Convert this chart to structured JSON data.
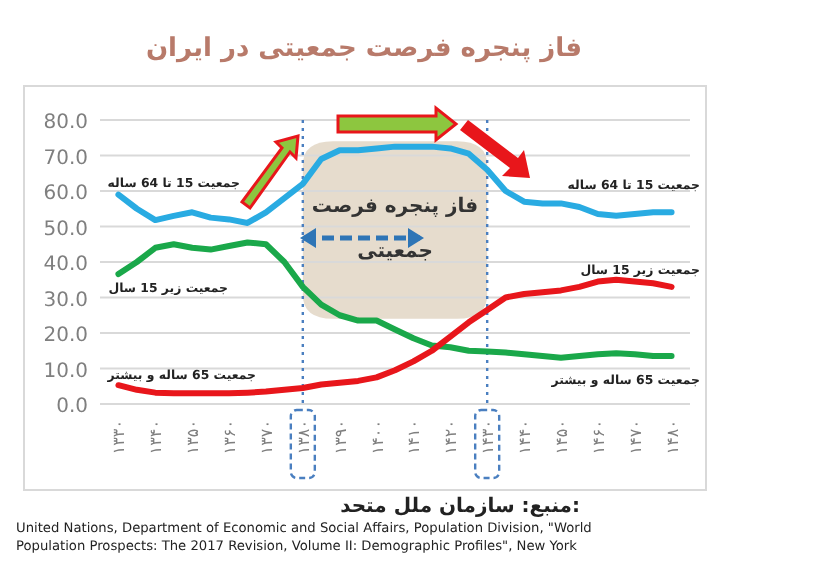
{
  "chart_data": {
    "type": "line",
    "title": "فاز پنجره فرصت جمعیتی در ایران",
    "x": [
      1330,
      1335,
      1340,
      1345,
      1350,
      1355,
      1360,
      1365,
      1370,
      1375,
      1380,
      1385,
      1390,
      1395,
      1400,
      1405,
      1410,
      1415,
      1420,
      1425,
      1430,
      1435,
      1440,
      1445,
      1450,
      1455,
      1460,
      1465,
      1470,
      1475,
      1480
    ],
    "series": [
      {
        "name": "جمعیت 15 تا 64 ساله",
        "color": "#29abe2",
        "values": [
          59,
          55,
          51.8,
          53,
          54,
          52.5,
          52,
          51,
          54,
          58,
          62,
          69,
          71.5,
          71.5,
          72,
          72.5,
          72.5,
          72.5,
          72,
          70.5,
          66,
          60,
          57,
          56.5,
          56.5,
          55.5,
          53.5,
          53,
          53.5,
          54,
          54
        ]
      },
      {
        "name": "جمعیت زیر 15 سال",
        "color": "#1aa84a",
        "values": [
          36.6,
          40,
          44,
          45,
          44,
          43.5,
          44.5,
          45.5,
          45,
          40,
          33,
          28,
          25,
          23.5,
          23.5,
          21,
          18.5,
          16.5,
          16,
          15,
          14.8,
          14.5,
          14,
          13.5,
          13,
          13.5,
          14,
          14.3,
          14,
          13.5,
          13.5
        ]
      },
      {
        "name": "جمعیت 65 ساله و بیشتر",
        "color": "#e8161b",
        "values": [
          5.3,
          4,
          3.2,
          3,
          3,
          3,
          3,
          3.2,
          3.5,
          4,
          4.5,
          5.5,
          6,
          6.5,
          7.5,
          9.5,
          12,
          15,
          19,
          23,
          26.5,
          30,
          31,
          31.5,
          32,
          33,
          34.5,
          35,
          34.5,
          34,
          33
        ]
      }
    ],
    "xlim": [
      1325,
      1485
    ],
    "xticks": [
      {
        "value": 1330,
        "label": "۱۳۳۰"
      },
      {
        "value": 1340,
        "label": "۱۳۴۰"
      },
      {
        "value": 1350,
        "label": "۱۳۵۰"
      },
      {
        "value": 1360,
        "label": "۱۳۶۰"
      },
      {
        "value": 1370,
        "label": "۱۳۷۰"
      },
      {
        "value": 1380,
        "label": "۱۳۸۰"
      },
      {
        "value": 1390,
        "label": "۱۳۹۰"
      },
      {
        "value": 1400,
        "label": "۱۴۰۰"
      },
      {
        "value": 1410,
        "label": "۱۴۱۰"
      },
      {
        "value": 1420,
        "label": "۱۴۲۰"
      },
      {
        "value": 1430,
        "label": "۱۴۳۰"
      },
      {
        "value": 1440,
        "label": "۱۴۴۰"
      },
      {
        "value": 1450,
        "label": "۱۴۵۰"
      },
      {
        "value": 1460,
        "label": "۱۴۶۰"
      },
      {
        "value": 1470,
        "label": "۱۴۷۰"
      },
      {
        "value": 1480,
        "label": "۱۴۸۰"
      }
    ],
    "ylim": [
      0,
      80
    ],
    "yticks": [
      {
        "value": 0,
        "label": "0.0"
      },
      {
        "value": 10,
        "label": "10.0"
      },
      {
        "value": 20,
        "label": "20.0"
      },
      {
        "value": 30,
        "label": "30.0"
      },
      {
        "value": 40,
        "label": "40.0"
      },
      {
        "value": 50,
        "label": "50.0"
      },
      {
        "value": 60,
        "label": "60.0"
      },
      {
        "value": 70,
        "label": "70.0"
      },
      {
        "value": 80,
        "label": "80.0"
      }
    ],
    "grid": "y",
    "legend": false,
    "marker": "none",
    "line_style": "solid",
    "bands": [
      {
        "axis": "x",
        "from": 1380,
        "to": 1430,
        "label": "فاز پنجره فرصت جمعیتی",
        "color": "#e6dccd"
      }
    ],
    "ref_lines": [
      {
        "axis": "x",
        "value": 1380,
        "color": "#4a7fc0",
        "line_style": "dotted"
      },
      {
        "axis": "x",
        "value": 1430,
        "color": "#4a7fc0",
        "line_style": "dotted"
      }
    ],
    "annotations": [
      "منبع: سازمان ملل متحد:",
      "United Nations, Department of Economic and Social Affairs, Population Division, \"World Population Prospects: The 2017 Revision, Volume II: Demographic Profiles\", New York"
    ]
  }
}
